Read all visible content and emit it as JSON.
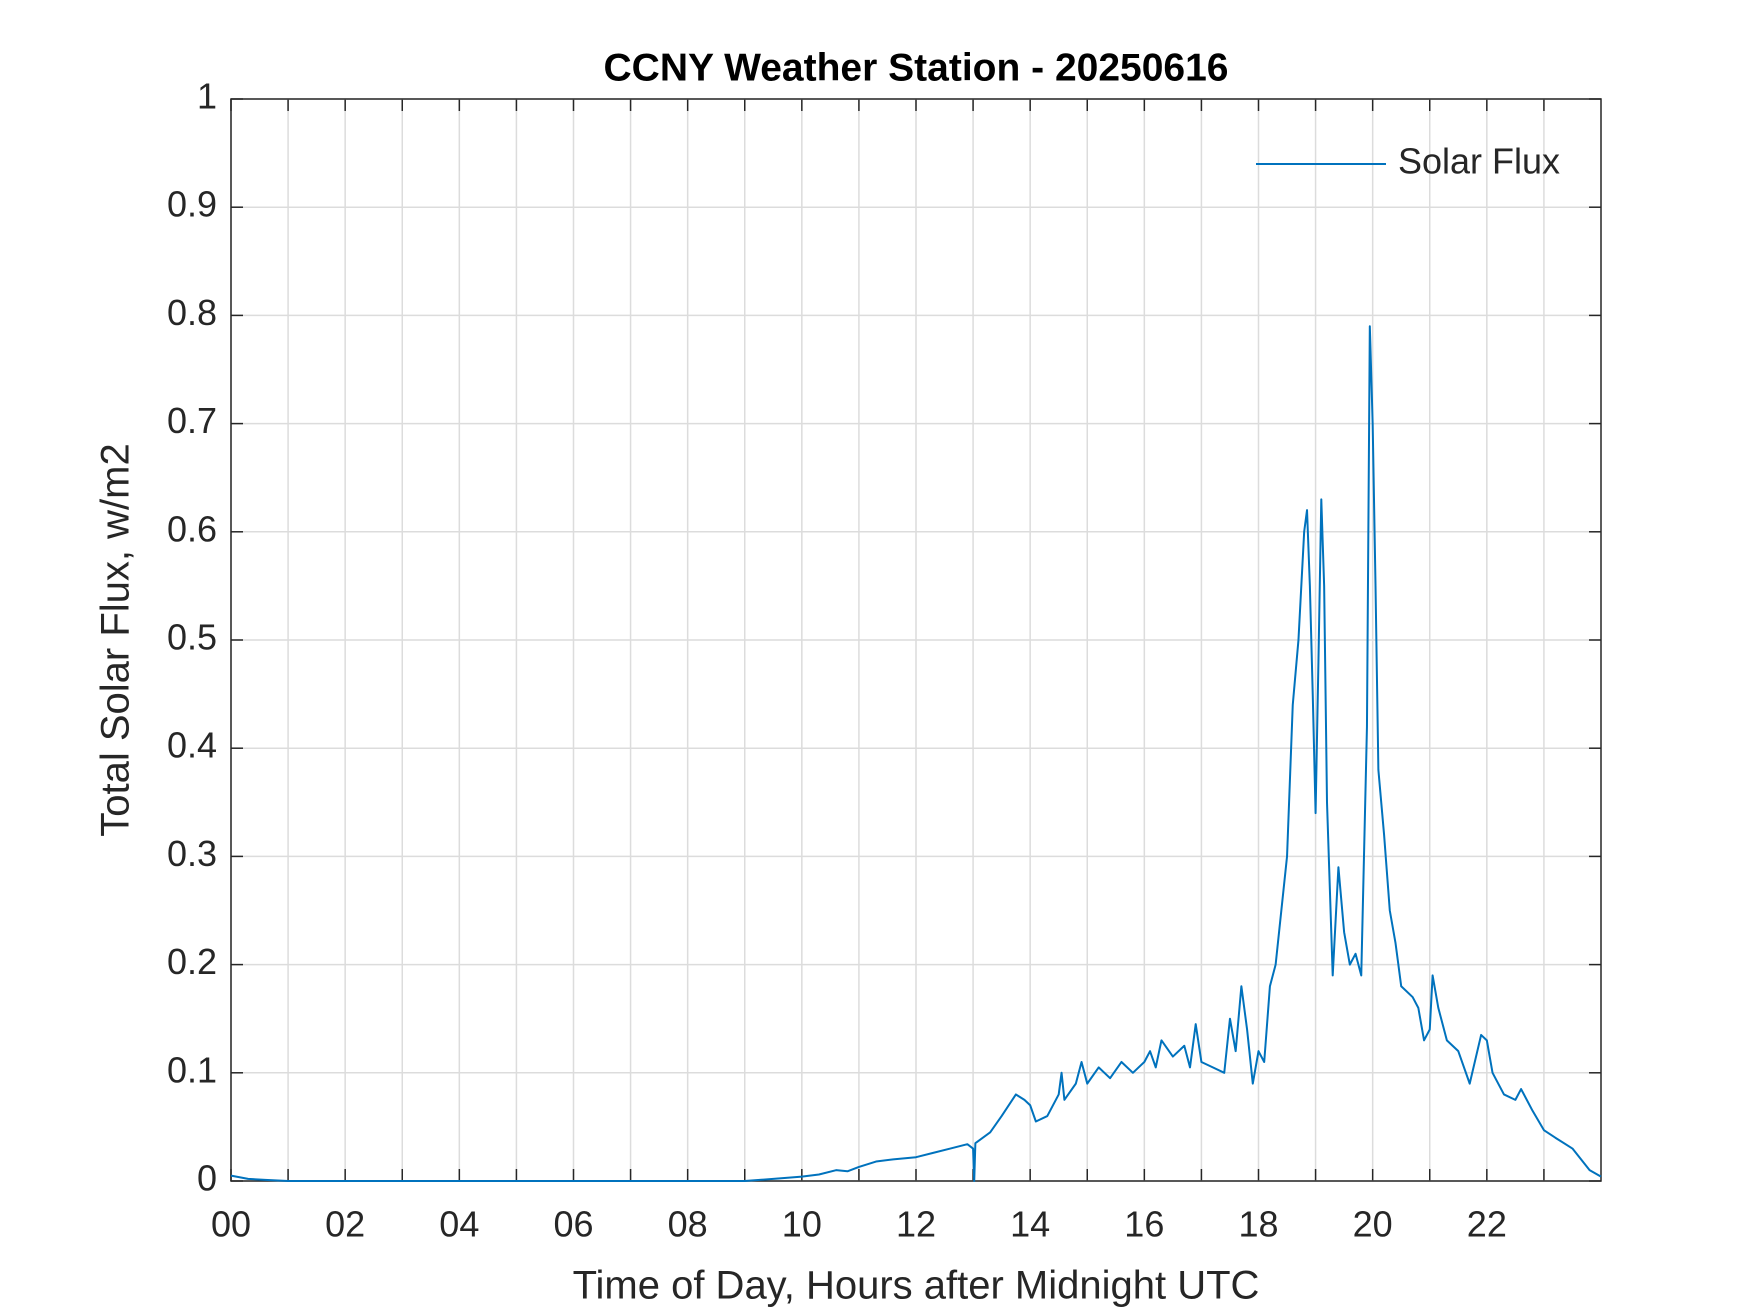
{
  "chart_data": {
    "type": "line",
    "title": "CCNY Weather Station - 20250616",
    "xlabel": "Time of Day, Hours after Midnight UTC",
    "ylabel": "Total Solar Flux, w/m2",
    "xlim": [
      0,
      24
    ],
    "xticks": [
      {
        "value": 0,
        "label": "00"
      },
      {
        "value": 2,
        "label": "02"
      },
      {
        "value": 4,
        "label": "04"
      },
      {
        "value": 6,
        "label": "06"
      },
      {
        "value": 8,
        "label": "08"
      },
      10,
      12,
      14,
      16,
      18,
      20,
      22
    ],
    "xminorticks": [
      1,
      3,
      5,
      7,
      9,
      11,
      13,
      15,
      17,
      19,
      21,
      23
    ],
    "ylim": [
      0,
      1
    ],
    "yticks": [
      0,
      0.1,
      0.2,
      0.3,
      0.4,
      0.5,
      0.6,
      0.7,
      0.8,
      0.9,
      1
    ],
    "grid": true,
    "legend": "upper right",
    "x": [
      0,
      0.3,
      0.6,
      1,
      2,
      3,
      4,
      5,
      6,
      7,
      8,
      9,
      9.5,
      10,
      10.3,
      10.6,
      10.8,
      11,
      11.3,
      11.6,
      12,
      12.3,
      12.6,
      12.9,
      13.0,
      13.02,
      13.04,
      13.3,
      13.5,
      13.75,
      13.9,
      14.0,
      14.1,
      14.3,
      14.5,
      14.55,
      14.6,
      14.8,
      14.9,
      15.0,
      15.2,
      15.4,
      15.6,
      15.8,
      16.0,
      16.1,
      16.2,
      16.3,
      16.5,
      16.7,
      16.8,
      16.9,
      17.0,
      17.2,
      17.4,
      17.5,
      17.6,
      17.7,
      17.8,
      17.9,
      18.0,
      18.1,
      18.2,
      18.3,
      18.4,
      18.5,
      18.6,
      18.7,
      18.8,
      18.85,
      18.9,
      18.95,
      19.0,
      19.05,
      19.1,
      19.15,
      19.2,
      19.3,
      19.4,
      19.5,
      19.6,
      19.7,
      19.8,
      19.9,
      19.95,
      20.0,
      20.05,
      20.1,
      20.2,
      20.3,
      20.4,
      20.5,
      20.7,
      20.8,
      20.9,
      21.0,
      21.05,
      21.15,
      21.3,
      21.5,
      21.7,
      21.9,
      22.0,
      22.1,
      22.3,
      22.5,
      22.6,
      22.8,
      23.0,
      23.2,
      23.5,
      23.8,
      24.0
    ],
    "series": [
      {
        "name": "Solar Flux",
        "color": "#0072bd",
        "values": [
          0.005,
          0.002,
          0.001,
          0,
          0,
          0,
          0,
          0,
          0,
          0,
          0,
          0,
          0.002,
          0.004,
          0.006,
          0.01,
          0.009,
          0.013,
          0.018,
          0.02,
          0.022,
          0.026,
          0.03,
          0.034,
          0.03,
          0.0,
          0.035,
          0.045,
          0.06,
          0.08,
          0.075,
          0.07,
          0.055,
          0.06,
          0.08,
          0.1,
          0.075,
          0.09,
          0.11,
          0.09,
          0.105,
          0.095,
          0.11,
          0.1,
          0.11,
          0.12,
          0.105,
          0.13,
          0.115,
          0.125,
          0.105,
          0.145,
          0.11,
          0.105,
          0.1,
          0.15,
          0.12,
          0.18,
          0.14,
          0.09,
          0.12,
          0.11,
          0.18,
          0.2,
          0.25,
          0.3,
          0.44,
          0.5,
          0.6,
          0.62,
          0.55,
          0.45,
          0.34,
          0.48,
          0.63,
          0.55,
          0.35,
          0.19,
          0.29,
          0.23,
          0.2,
          0.21,
          0.19,
          0.42,
          0.79,
          0.7,
          0.55,
          0.38,
          0.32,
          0.25,
          0.22,
          0.18,
          0.17,
          0.16,
          0.13,
          0.14,
          0.19,
          0.16,
          0.13,
          0.12,
          0.09,
          0.135,
          0.13,
          0.1,
          0.08,
          0.075,
          0.085,
          0.065,
          0.047,
          0.04,
          0.03,
          0.01,
          0.004
        ]
      }
    ]
  }
}
